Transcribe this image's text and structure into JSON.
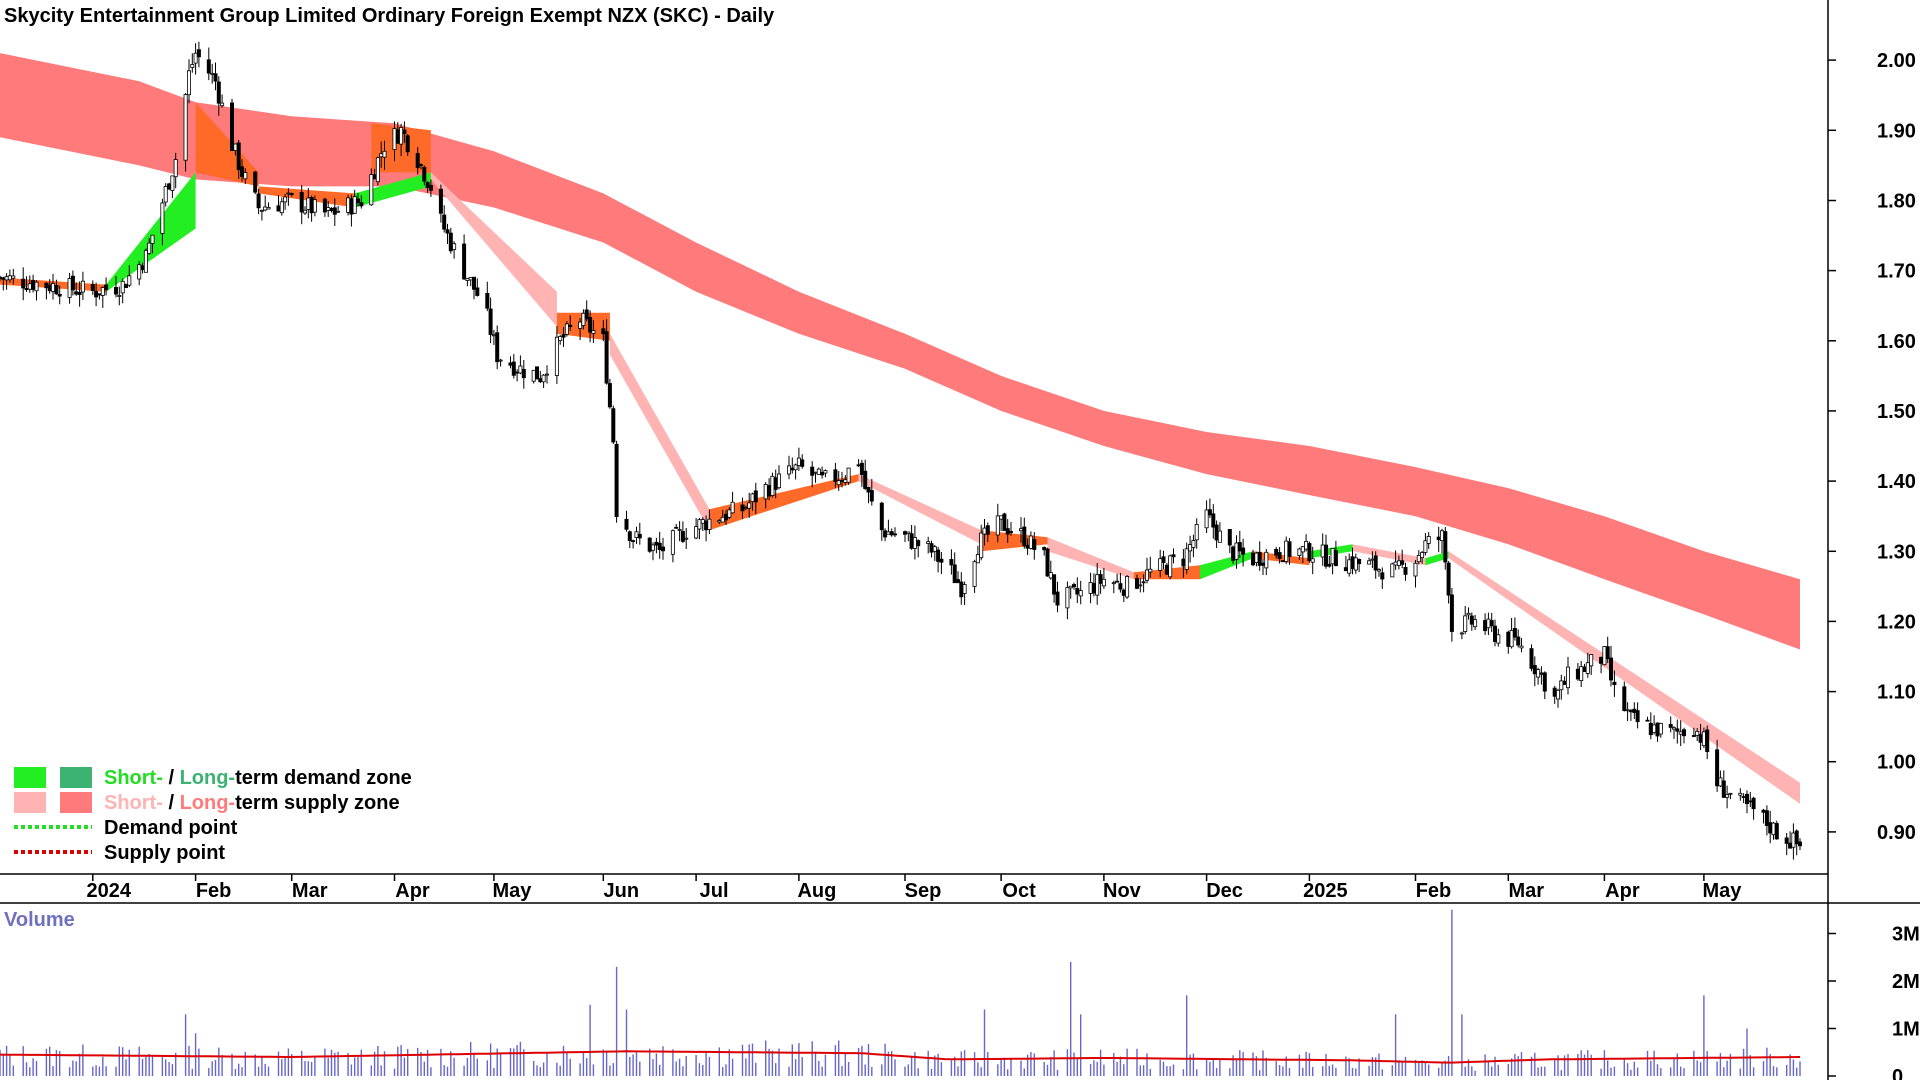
{
  "chart_data": {
    "type": "candlestick",
    "title": "Skycity Entertainment Group Limited Ordinary Foreign Exempt NZX (SKC) - Daily",
    "price_axis": {
      "ticks": [
        "2.00",
        "1.90",
        "1.80",
        "1.70",
        "1.60",
        "1.50",
        "1.40",
        "1.30",
        "1.20",
        "1.10",
        "1.00",
        "0.90"
      ],
      "range": [
        0.84,
        2.08
      ]
    },
    "x_axis": {
      "range": [
        "2023-12-04",
        "2025-05-30"
      ],
      "ticks": [
        {
          "label": "2024",
          "date": "2024-01-01",
          "bold_year": true
        },
        {
          "label": "Feb",
          "date": "2024-02-01"
        },
        {
          "label": "Mar",
          "date": "2024-03-01"
        },
        {
          "label": "Apr",
          "date": "2024-04-01"
        },
        {
          "label": "May",
          "date": "2024-05-01"
        },
        {
          "label": "Jun",
          "date": "2024-06-03"
        },
        {
          "label": "Jul",
          "date": "2024-07-01"
        },
        {
          "label": "Aug",
          "date": "2024-08-01"
        },
        {
          "label": "Sep",
          "date": "2024-09-02"
        },
        {
          "label": "Oct",
          "date": "2024-10-01"
        },
        {
          "label": "Nov",
          "date": "2024-11-01"
        },
        {
          "label": "Dec",
          "date": "2024-12-02"
        },
        {
          "label": "2025",
          "date": "2025-01-02",
          "bold_year": true
        },
        {
          "label": "Feb",
          "date": "2025-02-03"
        },
        {
          "label": "Mar",
          "date": "2025-03-03"
        },
        {
          "label": "Apr",
          "date": "2025-04-01"
        },
        {
          "label": "May",
          "date": "2025-05-01"
        }
      ]
    },
    "price_path": [
      [
        "2023-12-04",
        1.69
      ],
      [
        "2024-01-01",
        1.67
      ],
      [
        "2024-01-10",
        1.68
      ],
      [
        "2024-01-17",
        1.72
      ],
      [
        "2024-01-26",
        1.86
      ],
      [
        "2024-01-30",
        1.98
      ],
      [
        "2024-02-01",
        2.01
      ],
      [
        "2024-02-07",
        1.97
      ],
      [
        "2024-02-12",
        1.88
      ],
      [
        "2024-02-15",
        1.84
      ],
      [
        "2024-02-20",
        1.79
      ],
      [
        "2024-03-01",
        1.8
      ],
      [
        "2024-03-12",
        1.78
      ],
      [
        "2024-03-22",
        1.8
      ],
      [
        "2024-03-29",
        1.88
      ],
      [
        "2024-04-03",
        1.9
      ],
      [
        "2024-04-08",
        1.86
      ],
      [
        "2024-04-12",
        1.82
      ],
      [
        "2024-04-15",
        1.77
      ],
      [
        "2024-04-22",
        1.7
      ],
      [
        "2024-04-28",
        1.65
      ],
      [
        "2024-05-02",
        1.58
      ],
      [
        "2024-05-09",
        1.56
      ],
      [
        "2024-05-15",
        1.55
      ],
      [
        "2024-05-21",
        1.6
      ],
      [
        "2024-05-27",
        1.63
      ],
      [
        "2024-06-03",
        1.6
      ],
      [
        "2024-06-06",
        1.46
      ],
      [
        "2024-06-07",
        1.36
      ],
      [
        "2024-06-12",
        1.32
      ],
      [
        "2024-06-20",
        1.3
      ],
      [
        "2024-06-28",
        1.33
      ],
      [
        "2024-07-08",
        1.35
      ],
      [
        "2024-07-15",
        1.36
      ],
      [
        "2024-07-22",
        1.39
      ],
      [
        "2024-08-01",
        1.42
      ],
      [
        "2024-08-08",
        1.4
      ],
      [
        "2024-08-15",
        1.41
      ],
      [
        "2024-08-19",
        1.43
      ],
      [
        "2024-08-21",
        1.39
      ],
      [
        "2024-08-26",
        1.33
      ],
      [
        "2024-09-02",
        1.32
      ],
      [
        "2024-09-10",
        1.3
      ],
      [
        "2024-09-16",
        1.27
      ],
      [
        "2024-09-19",
        1.25
      ],
      [
        "2024-09-24",
        1.31
      ],
      [
        "2024-10-01",
        1.34
      ],
      [
        "2024-10-08",
        1.32
      ],
      [
        "2024-10-14",
        1.29
      ],
      [
        "2024-10-18",
        1.23
      ],
      [
        "2024-10-25",
        1.24
      ],
      [
        "2024-11-01",
        1.26
      ],
      [
        "2024-11-08",
        1.25
      ],
      [
        "2024-11-15",
        1.27
      ],
      [
        "2024-11-25",
        1.29
      ],
      [
        "2024-12-02",
        1.35
      ],
      [
        "2024-12-09",
        1.3
      ],
      [
        "2024-12-16",
        1.29
      ],
      [
        "2024-12-23",
        1.3
      ],
      [
        "2025-01-02",
        1.3
      ],
      [
        "2025-01-09",
        1.29
      ],
      [
        "2025-01-20",
        1.28
      ],
      [
        "2025-01-28",
        1.27
      ],
      [
        "2025-02-03",
        1.29
      ],
      [
        "2025-02-06",
        1.31
      ],
      [
        "2025-02-11",
        1.32
      ],
      [
        "2025-02-13",
        1.25
      ],
      [
        "2025-02-14",
        1.19
      ],
      [
        "2025-02-21",
        1.2
      ],
      [
        "2025-02-28",
        1.18
      ],
      [
        "2025-03-06",
        1.17
      ],
      [
        "2025-03-12",
        1.13
      ],
      [
        "2025-03-17",
        1.09
      ],
      [
        "2025-03-21",
        1.12
      ],
      [
        "2025-03-28",
        1.14
      ],
      [
        "2025-04-01",
        1.15
      ],
      [
        "2025-04-04",
        1.1
      ],
      [
        "2025-04-09",
        1.06
      ],
      [
        "2025-04-14",
        1.05
      ],
      [
        "2025-04-22",
        1.04
      ],
      [
        "2025-04-28",
        1.05
      ],
      [
        "2025-05-01",
        1.03
      ],
      [
        "2025-05-05",
        0.97
      ],
      [
        "2025-05-12",
        0.94
      ],
      [
        "2025-05-16",
        0.93
      ],
      [
        "2025-05-23",
        0.9
      ],
      [
        "2025-05-30",
        0.88
      ]
    ],
    "long_term_band": {
      "color": "#ff7b7b",
      "upper": [
        [
          "2023-12-04",
          2.01
        ],
        [
          "2024-01-15",
          1.97
        ],
        [
          "2024-02-01",
          1.94
        ],
        [
          "2024-03-01",
          1.92
        ],
        [
          "2024-04-01",
          1.91
        ],
        [
          "2024-05-01",
          1.87
        ],
        [
          "2024-06-03",
          1.81
        ],
        [
          "2024-07-01",
          1.74
        ],
        [
          "2024-08-01",
          1.67
        ],
        [
          "2024-09-02",
          1.61
        ],
        [
          "2024-10-01",
          1.55
        ],
        [
          "2024-11-01",
          1.5
        ],
        [
          "2024-12-02",
          1.47
        ],
        [
          "2025-01-02",
          1.45
        ],
        [
          "2025-02-03",
          1.42
        ],
        [
          "2025-03-03",
          1.39
        ],
        [
          "2025-04-01",
          1.35
        ],
        [
          "2025-05-01",
          1.3
        ],
        [
          "2025-05-30",
          1.26
        ]
      ],
      "lower": [
        [
          "2023-12-04",
          1.89
        ],
        [
          "2024-01-15",
          1.85
        ],
        [
          "2024-02-01",
          1.83
        ],
        [
          "2024-03-01",
          1.82
        ],
        [
          "2024-04-01",
          1.82
        ],
        [
          "2024-05-01",
          1.79
        ],
        [
          "2024-06-03",
          1.74
        ],
        [
          "2024-07-01",
          1.67
        ],
        [
          "2024-08-01",
          1.61
        ],
        [
          "2024-09-02",
          1.56
        ],
        [
          "2024-10-01",
          1.5
        ],
        [
          "2024-11-01",
          1.45
        ],
        [
          "2024-12-02",
          1.41
        ],
        [
          "2025-01-02",
          1.38
        ],
        [
          "2025-02-03",
          1.35
        ],
        [
          "2025-03-03",
          1.31
        ],
        [
          "2025-04-01",
          1.26
        ],
        [
          "2025-05-01",
          1.21
        ],
        [
          "2025-05-30",
          1.16
        ]
      ]
    },
    "short_term_band": {
      "segments": [
        {
          "start": "2023-12-04",
          "end": "2024-01-05",
          "color": "#ff6a28",
          "upper": [
            1.69,
            1.68
          ],
          "lower": [
            1.68,
            1.67
          ]
        },
        {
          "start": "2024-01-05",
          "end": "2024-02-01",
          "color": "#22ee22",
          "upper": [
            1.68,
            1.84
          ],
          "lower": [
            1.67,
            1.76
          ]
        },
        {
          "start": "2024-02-01",
          "end": "2024-02-20",
          "color": "#ff6a28",
          "upper": [
            1.94,
            1.84
          ],
          "lower": [
            1.84,
            1.82
          ]
        },
        {
          "start": "2024-02-20",
          "end": "2024-03-20",
          "color": "#ff6a28",
          "upper": [
            1.82,
            1.81
          ],
          "lower": [
            1.81,
            1.79
          ]
        },
        {
          "start": "2024-03-20",
          "end": "2024-04-12",
          "color": "#22ee22",
          "upper": [
            1.81,
            1.84
          ],
          "lower": [
            1.79,
            1.82
          ]
        },
        {
          "start": "2024-03-25",
          "end": "2024-04-12",
          "color": "#ff6a28",
          "upper": [
            1.91,
            1.9
          ],
          "lower": [
            1.84,
            1.84
          ]
        },
        {
          "start": "2024-04-12",
          "end": "2024-05-20",
          "color": "#ffb3b3",
          "upper": [
            1.84,
            1.67
          ],
          "lower": [
            1.83,
            1.62
          ]
        },
        {
          "start": "2024-05-20",
          "end": "2024-06-05",
          "color": "#ff6a28",
          "upper": [
            1.64,
            1.64
          ],
          "lower": [
            1.61,
            1.6
          ]
        },
        {
          "start": "2024-06-05",
          "end": "2024-07-05",
          "color": "#ffb3b3",
          "upper": [
            1.61,
            1.36
          ],
          "lower": [
            1.58,
            1.33
          ]
        },
        {
          "start": "2024-07-05",
          "end": "2024-08-19",
          "color": "#ff6a28",
          "upper": [
            1.36,
            1.41
          ],
          "lower": [
            1.33,
            1.4
          ]
        },
        {
          "start": "2024-08-19",
          "end": "2024-09-25",
          "color": "#ffb3b3",
          "upper": [
            1.41,
            1.33
          ],
          "lower": [
            1.4,
            1.31
          ]
        },
        {
          "start": "2024-09-25",
          "end": "2024-10-15",
          "color": "#ff6a28",
          "upper": [
            1.33,
            1.32
          ],
          "lower": [
            1.3,
            1.31
          ]
        },
        {
          "start": "2024-10-15",
          "end": "2024-11-10",
          "color": "#ffb3b3",
          "upper": [
            1.32,
            1.27
          ],
          "lower": [
            1.3,
            1.26
          ]
        },
        {
          "start": "2024-11-10",
          "end": "2024-11-30",
          "color": "#ff6a28",
          "upper": [
            1.27,
            1.28
          ],
          "lower": [
            1.26,
            1.26
          ]
        },
        {
          "start": "2024-11-30",
          "end": "2024-12-16",
          "color": "#22ee22",
          "upper": [
            1.28,
            1.3
          ],
          "lower": [
            1.26,
            1.29
          ]
        },
        {
          "start": "2024-12-16",
          "end": "2025-01-02",
          "color": "#ff6a28",
          "upper": [
            1.3,
            1.29
          ],
          "lower": [
            1.29,
            1.28
          ]
        },
        {
          "start": "2025-01-02",
          "end": "2025-01-15",
          "color": "#22ee22",
          "upper": [
            1.3,
            1.31
          ],
          "lower": [
            1.29,
            1.3
          ]
        },
        {
          "start": "2025-01-15",
          "end": "2025-02-06",
          "color": "#ffb3b3",
          "upper": [
            1.31,
            1.29
          ],
          "lower": [
            1.3,
            1.28
          ]
        },
        {
          "start": "2025-02-06",
          "end": "2025-02-13",
          "color": "#22ee22",
          "upper": [
            1.29,
            1.3
          ],
          "lower": [
            1.28,
            1.29
          ]
        },
        {
          "start": "2025-02-13",
          "end": "2025-05-30",
          "color": "#ffb3b3",
          "upper": [
            1.3,
            0.97
          ],
          "lower": [
            1.29,
            0.94
          ]
        }
      ]
    },
    "volume": {
      "label": "Volume",
      "ticks": [
        "3M",
        "2M",
        "1M",
        "0"
      ],
      "range_millions": [
        0,
        3.6
      ],
      "average_millions": [
        [
          "2023-12-04",
          0.45
        ],
        [
          "2024-03-01",
          0.4
        ],
        [
          "2024-06-10",
          0.52
        ],
        [
          "2024-08-20",
          0.48
        ],
        [
          "2024-09-15",
          0.35
        ],
        [
          "2024-11-01",
          0.38
        ],
        [
          "2025-01-15",
          0.33
        ],
        [
          "2025-02-13",
          0.28
        ],
        [
          "2025-03-15",
          0.35
        ],
        [
          "2025-05-30",
          0.4
        ]
      ],
      "spikes_millions": [
        [
          "2024-01-29",
          1.3
        ],
        [
          "2024-02-01",
          0.9
        ],
        [
          "2024-05-30",
          1.5
        ],
        [
          "2024-06-07",
          2.3
        ],
        [
          "2024-06-10",
          1.4
        ],
        [
          "2024-09-26",
          1.4
        ],
        [
          "2024-10-22",
          2.4
        ],
        [
          "2024-10-25",
          1.3
        ],
        [
          "2024-11-26",
          1.7
        ],
        [
          "2025-01-28",
          1.3
        ],
        [
          "2025-02-14",
          3.5
        ],
        [
          "2025-02-17",
          1.3
        ],
        [
          "2025-05-01",
          1.7
        ],
        [
          "2025-05-14",
          1.0
        ]
      ]
    },
    "colors": {
      "long_term_supply": "#ff7b7b",
      "short_term_supply": "#ffb3b3",
      "short_term_demand": "#22ee22",
      "long_term_demand": "#3cb371",
      "overlap": "#ff6a28",
      "volume_bar": "#6666cc",
      "volume_average": "#dd0000"
    }
  },
  "legend": {
    "row1": {
      "short": "Short-",
      "sep": " / ",
      "long": "Long-",
      "rest": "term demand zone"
    },
    "row2": {
      "short": "Short-",
      "sep": " / ",
      "long": "Long-",
      "rest": "term supply zone"
    },
    "row3": "Demand point",
    "row4": "Supply point"
  }
}
